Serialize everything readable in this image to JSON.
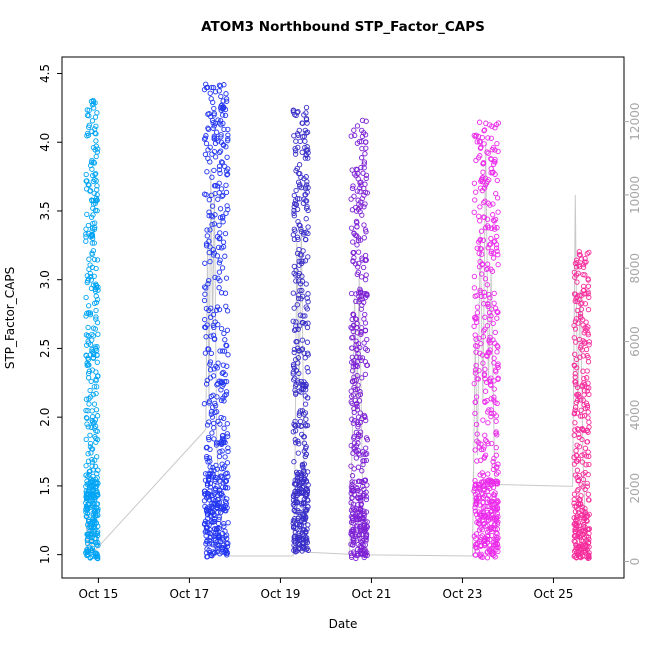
{
  "title": "ATOM3 Northbound STP_Factor_CAPS",
  "chart_data": {
    "type": "scatter",
    "title": "ATOM3 Northbound STP_Factor_CAPS",
    "xlabel": "Date",
    "ylabel": "STP_Factor_CAPS",
    "grid": false,
    "legend": "none",
    "point_style": "open-circle",
    "x_tick_labels": [
      "Oct 15",
      "Oct 17",
      "Oct 19",
      "Oct 21",
      "Oct 23",
      "Oct 25"
    ],
    "x_tick_days": [
      15,
      17,
      19,
      21,
      23,
      25
    ],
    "x_range_days": [
      14.2,
      26.55
    ],
    "y_ticks": [
      1.0,
      1.5,
      2.0,
      2.5,
      3.0,
      3.5,
      4.0,
      4.5
    ],
    "y_range": [
      0.83,
      4.62
    ],
    "y2_ticks": [
      0,
      2000,
      4000,
      6000,
      8000,
      10000,
      12000
    ],
    "y2_range": [
      0,
      12000
    ],
    "y2_left_align": [
      0.95,
      4.15
    ],
    "clusters": [
      {
        "name": "oct15-burst",
        "color": "#00A4F5",
        "day_start": 14.72,
        "day_end": 15.0,
        "y_min": 0.97,
        "y_max": 4.33,
        "count": 420
      },
      {
        "name": "oct17-burst",
        "color": "#2336F0",
        "day_start": 17.33,
        "day_end": 17.86,
        "y_min": 0.97,
        "y_max": 4.43,
        "count": 520
      },
      {
        "name": "oct19-burst",
        "color": "#3A2FC8",
        "day_start": 19.28,
        "day_end": 19.62,
        "y_min": 1.02,
        "y_max": 4.26,
        "count": 430
      },
      {
        "name": "oct20-burst",
        "color": "#7E22D4",
        "day_start": 20.55,
        "day_end": 20.92,
        "y_min": 0.97,
        "y_max": 4.18,
        "count": 430
      },
      {
        "name": "oct23-burst",
        "color": "#EB2CEB",
        "day_start": 23.25,
        "day_end": 23.8,
        "y_min": 0.97,
        "y_max": 4.15,
        "count": 500
      },
      {
        "name": "oct25-burst",
        "color": "#F62C9C",
        "day_start": 25.45,
        "day_end": 25.8,
        "y_min": 0.97,
        "y_max": 3.22,
        "count": 330
      }
    ],
    "gray_line": {
      "color": "#C9C9C9",
      "axis": "right",
      "points": [
        [
          14.72,
          150
        ],
        [
          14.75,
          1300
        ],
        [
          14.78,
          300
        ],
        [
          14.82,
          1000
        ],
        [
          14.87,
          250
        ],
        [
          14.96,
          350
        ],
        [
          17.36,
          3600
        ],
        [
          17.4,
          8800
        ],
        [
          17.43,
          4200
        ],
        [
          17.47,
          10700
        ],
        [
          17.51,
          6300
        ],
        [
          17.55,
          10100
        ],
        [
          17.6,
          3200
        ],
        [
          17.68,
          1400
        ],
        [
          17.78,
          400
        ],
        [
          17.86,
          150
        ],
        [
          19.28,
          150
        ],
        [
          19.32,
          2600
        ],
        [
          19.36,
          8700
        ],
        [
          19.41,
          4800
        ],
        [
          19.46,
          9200
        ],
        [
          19.52,
          2400
        ],
        [
          19.6,
          250
        ],
        [
          20.52,
          200
        ],
        [
          20.58,
          3400
        ],
        [
          20.63,
          7200
        ],
        [
          20.68,
          4100
        ],
        [
          20.73,
          7800
        ],
        [
          20.82,
          700
        ],
        [
          20.9,
          180
        ],
        [
          23.22,
          150
        ],
        [
          23.28,
          6100
        ],
        [
          23.33,
          2900
        ],
        [
          23.39,
          9000
        ],
        [
          23.45,
          4400
        ],
        [
          23.51,
          11400
        ],
        [
          23.57,
          4900
        ],
        [
          23.63,
          7900
        ],
        [
          23.71,
          2300
        ],
        [
          23.8,
          2100
        ],
        [
          25.42,
          2050
        ],
        [
          25.48,
          10000
        ],
        [
          25.53,
          4100
        ],
        [
          25.59,
          7400
        ],
        [
          25.65,
          2800
        ],
        [
          25.72,
          450
        ],
        [
          25.79,
          150
        ]
      ]
    }
  }
}
